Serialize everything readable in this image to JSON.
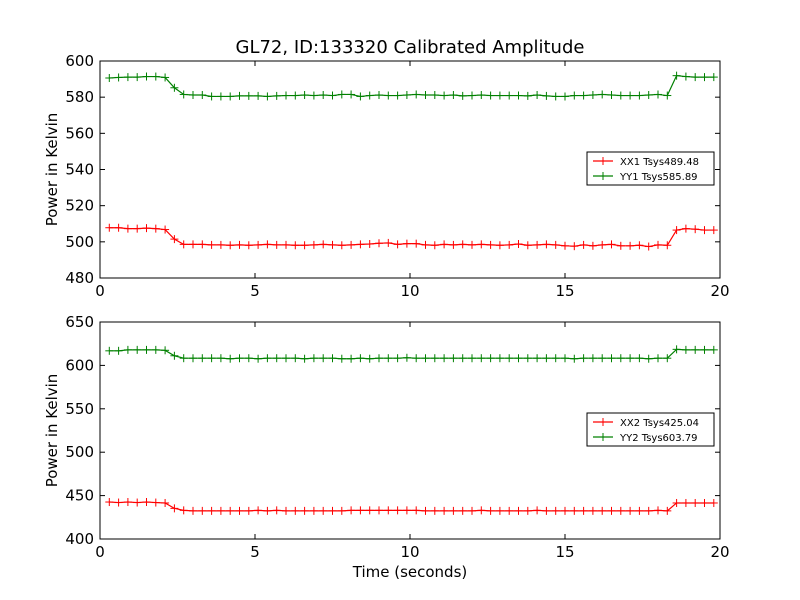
{
  "figure": {
    "title": "GL72, ID:133320 Calibrated Amplitude",
    "xlabel": "Time (seconds)"
  },
  "chart_data": [
    {
      "type": "line",
      "title": "GL72, ID:133320 Calibrated Amplitude",
      "xlabel": "",
      "ylabel": "Power in Kelvin",
      "xlim": [
        0,
        20
      ],
      "ylim": [
        480,
        600
      ],
      "xticks": [
        0,
        5,
        10,
        15,
        20
      ],
      "yticks": [
        480,
        500,
        520,
        540,
        560,
        580,
        600
      ],
      "grid": false,
      "legend_position": "center-right",
      "x": [
        0.3,
        0.6,
        0.9,
        1.2,
        1.5,
        1.8,
        2.1,
        2.4,
        2.7,
        3.0,
        3.3,
        3.6,
        3.9,
        4.2,
        4.5,
        4.8,
        5.1,
        5.4,
        5.7,
        6.0,
        6.3,
        6.6,
        6.9,
        7.2,
        7.5,
        7.8,
        8.1,
        8.4,
        8.7,
        9.0,
        9.3,
        9.6,
        9.9,
        10.2,
        10.5,
        10.8,
        11.1,
        11.4,
        11.7,
        12.0,
        12.3,
        12.6,
        12.9,
        13.2,
        13.5,
        13.8,
        14.1,
        14.4,
        14.7,
        15.0,
        15.3,
        15.6,
        15.9,
        16.2,
        16.5,
        16.8,
        17.1,
        17.4,
        17.7,
        18.0,
        18.3,
        18.6,
        18.9,
        19.2,
        19.5,
        19.8
      ],
      "series": [
        {
          "name": "XX1 Tsys489.48",
          "color": "#ff0000",
          "values": [
            507.8,
            507.8,
            507.3,
            507.3,
            507.6,
            507.3,
            506.8,
            501.5,
            498.6,
            498.6,
            498.6,
            498.3,
            498.3,
            498.1,
            498.3,
            498.1,
            498.3,
            498.6,
            498.3,
            498.3,
            498.1,
            498.1,
            498.3,
            498.6,
            498.3,
            498.1,
            498.3,
            498.6,
            498.8,
            499.2,
            499.4,
            498.6,
            499.0,
            499.0,
            498.3,
            498.1,
            498.6,
            498.3,
            498.6,
            498.3,
            498.6,
            498.3,
            498.1,
            498.3,
            498.8,
            498.1,
            498.3,
            498.6,
            498.3,
            497.8,
            497.6,
            498.3,
            497.8,
            498.3,
            498.6,
            497.8,
            497.8,
            498.1,
            497.4,
            498.3,
            498.1,
            498.3,
            497.8,
            498.3,
            506.8,
            506.8
          ],
          "values_tail": [
            506.5,
            507.3,
            507.0,
            506.5
          ]
        },
        {
          "name": "YY1 Tsys585.89",
          "color": "#008000",
          "values": [
            590.6,
            590.9,
            591.1,
            591.1,
            591.4,
            591.4,
            590.9,
            585.2,
            581.5,
            581.2,
            581.2,
            580.4,
            580.4,
            580.4,
            580.7,
            580.7,
            580.7,
            580.4,
            580.7,
            580.9,
            580.9,
            581.2,
            580.9,
            581.2,
            580.9,
            581.5,
            581.5,
            580.4,
            580.9,
            581.2,
            580.9,
            580.9,
            581.2,
            581.5,
            581.2,
            581.2,
            580.9,
            581.2,
            580.7,
            580.9,
            581.2,
            580.9,
            580.9,
            580.9,
            580.9,
            580.7,
            581.2,
            580.7,
            580.4,
            580.4,
            580.9,
            580.9,
            581.2,
            581.5,
            581.2,
            580.9,
            580.9,
            580.9,
            581.2,
            581.5,
            580.9,
            580.9,
            580.9,
            580.9,
            581.2,
            581.5
          ],
          "values_tail": [
            591.9,
            591.4,
            591.1,
            591.1
          ]
        }
      ]
    },
    {
      "type": "line",
      "title": "",
      "xlabel": "Time (seconds)",
      "ylabel": "Power in Kelvin",
      "xlim": [
        0,
        20
      ],
      "ylim": [
        400,
        650
      ],
      "xticks": [
        0,
        5,
        10,
        15,
        20
      ],
      "yticks": [
        400,
        450,
        500,
        550,
        600,
        650
      ],
      "grid": false,
      "legend_position": "center-right",
      "x": [
        0.3,
        0.6,
        0.9,
        1.2,
        1.5,
        1.8,
        2.1,
        2.4,
        2.7,
        3.0,
        3.3,
        3.6,
        3.9,
        4.2,
        4.5,
        4.8,
        5.1,
        5.4,
        5.7,
        6.0,
        6.3,
        6.6,
        6.9,
        7.2,
        7.5,
        7.8,
        8.1,
        8.4,
        8.7,
        9.0,
        9.3,
        9.6,
        9.9,
        10.2,
        10.5,
        10.8,
        11.1,
        11.4,
        11.7,
        12.0,
        12.3,
        12.6,
        12.9,
        13.2,
        13.5,
        13.8,
        14.1,
        14.4,
        14.7,
        15.0,
        15.3,
        15.6,
        15.9,
        16.2,
        16.5,
        16.8,
        17.1,
        17.4,
        17.7,
        18.0,
        18.3,
        18.6,
        18.9,
        19.2,
        19.5,
        19.8
      ],
      "series": [
        {
          "name": "XX2 Tsys425.04",
          "color": "#ff0000",
          "values": [
            442.6,
            442.0,
            442.6,
            442.0,
            442.6,
            442.0,
            441.5,
            435.3,
            433.0,
            432.4,
            432.4,
            432.4,
            432.4,
            432.4,
            432.4,
            432.4,
            433.0,
            432.4,
            433.0,
            432.4,
            432.4,
            432.4,
            432.4,
            432.4,
            432.4,
            432.4,
            433.0,
            433.0,
            433.0,
            433.0,
            433.0,
            433.0,
            433.0,
            433.0,
            432.4,
            432.4,
            432.4,
            432.4,
            432.4,
            432.4,
            433.0,
            432.4,
            432.4,
            432.4,
            432.4,
            432.4,
            433.0,
            432.4,
            432.4,
            432.4,
            432.4,
            432.4,
            432.4,
            432.4,
            432.4,
            432.4,
            432.4,
            432.4,
            432.4,
            433.0,
            432.4,
            432.4,
            433.0,
            433.0,
            432.4,
            432.4
          ],
          "values_tail": [
            441.5,
            441.5,
            441.5,
            441.5
          ]
        },
        {
          "name": "YY2 Tsys603.79",
          "color": "#008000",
          "values": [
            616.8,
            616.8,
            617.9,
            617.9,
            617.9,
            617.9,
            617.4,
            611.1,
            608.3,
            608.3,
            608.3,
            608.3,
            608.3,
            607.7,
            608.3,
            608.3,
            607.7,
            608.3,
            608.3,
            608.3,
            608.3,
            607.7,
            608.3,
            608.3,
            608.3,
            607.7,
            607.7,
            608.3,
            607.7,
            608.3,
            608.3,
            608.3,
            608.8,
            608.3,
            608.3,
            608.3,
            608.3,
            608.3,
            608.3,
            608.3,
            608.3,
            608.3,
            608.3,
            608.3,
            608.3,
            608.3,
            608.3,
            608.3,
            608.3,
            608.3,
            607.7,
            608.3,
            608.3,
            608.3,
            608.3,
            608.3,
            608.3,
            608.3,
            607.7,
            608.3,
            608.3,
            607.7,
            608.3,
            608.3,
            608.3,
            608.3
          ],
          "values_tail": [
            618.5,
            617.9,
            617.9,
            617.9
          ]
        }
      ]
    }
  ]
}
